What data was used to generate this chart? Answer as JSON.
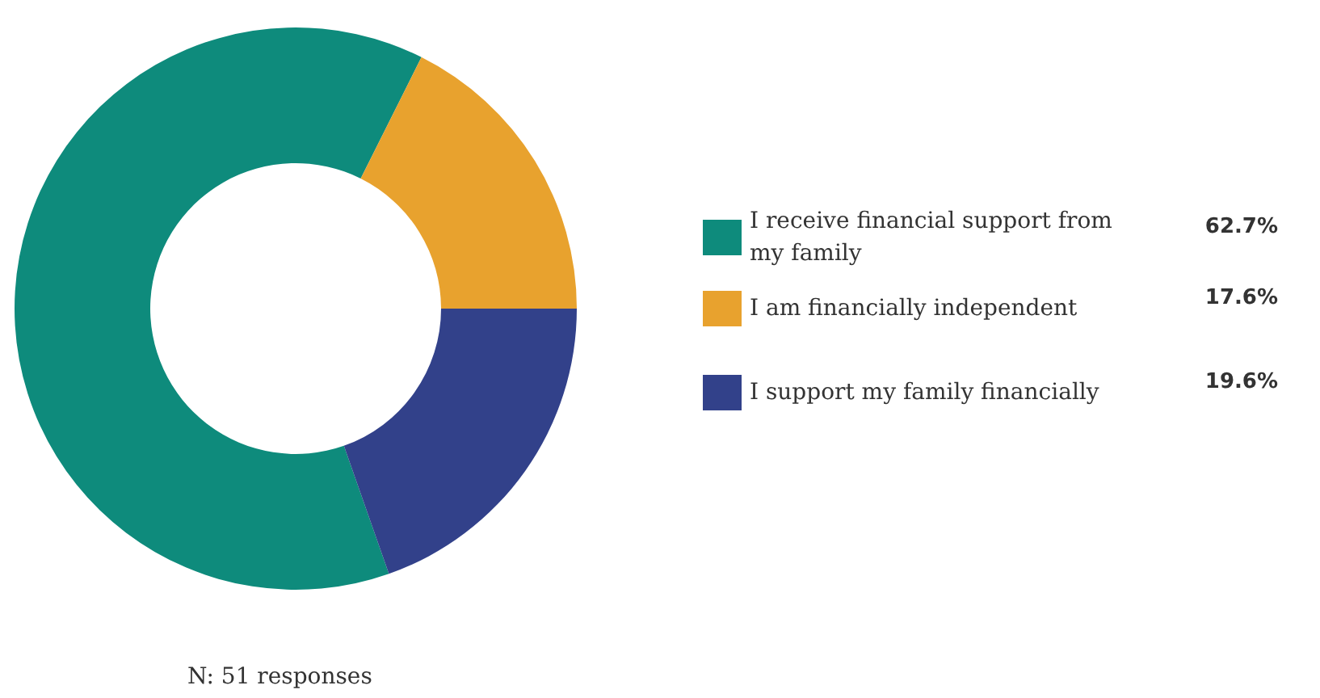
{
  "chart_data": {
    "type": "donut",
    "categories": [
      "I receive financial support from my family",
      "I am financially independent",
      "I support my family financially"
    ],
    "values": [
      62.7,
      17.6,
      19.6
    ],
    "colors": [
      "#0e8b7c",
      "#e8a22e",
      "#32418a"
    ],
    "value_labels": [
      "62.7%",
      "17.6%",
      "19.6%"
    ],
    "legend": "right",
    "annotations": [
      "N: 51 responses"
    ]
  }
}
